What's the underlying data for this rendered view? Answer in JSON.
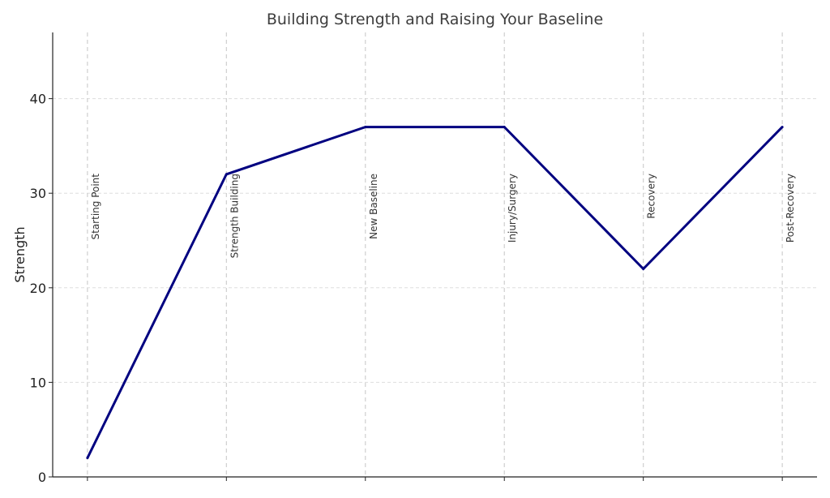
{
  "chart_data": {
    "type": "line",
    "title": "Building Strength and Raising Your Baseline",
    "xlabel": "",
    "ylabel": "Strength",
    "x": [
      0,
      1,
      2,
      3,
      4,
      5
    ],
    "series": [
      {
        "values": [
          2,
          32,
          37,
          37,
          22,
          37
        ],
        "color": "#000080"
      }
    ],
    "annotations": [
      "Starting Point",
      "Strength Building",
      "New Baseline",
      "Injury/Surgery",
      "Recovery",
      "Post-Recovery"
    ],
    "yticks": [
      0,
      10,
      20,
      30,
      40
    ],
    "ylim": [
      0,
      47
    ],
    "xlim": [
      -0.25,
      5.25
    ],
    "grid": true,
    "legend": "none"
  }
}
